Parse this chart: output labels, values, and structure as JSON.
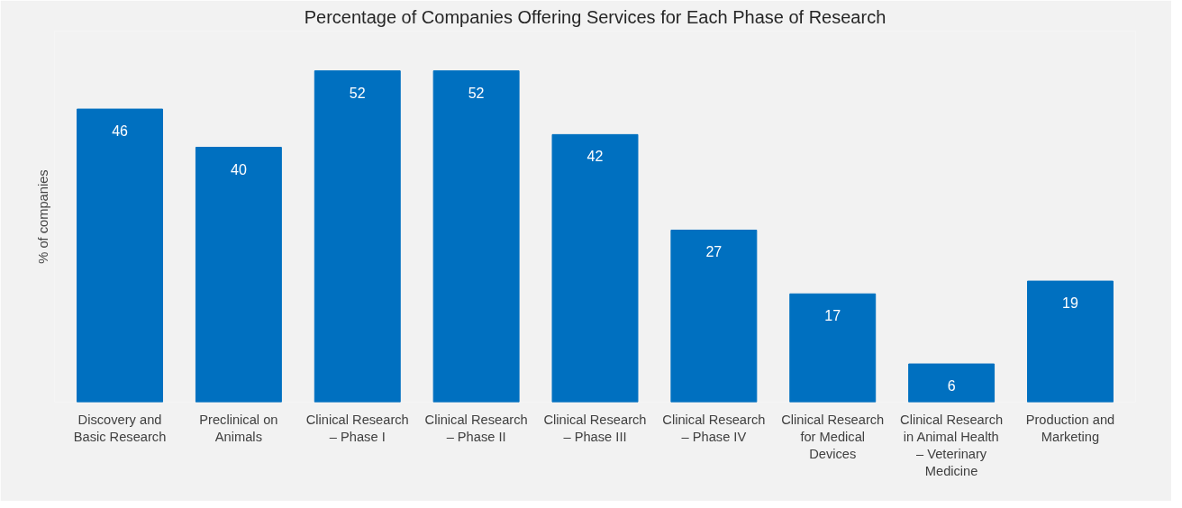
{
  "chart_data": {
    "type": "bar",
    "title": "Percentage of Companies Offering Services for Each Phase of Research",
    "ylabel": "% of companies",
    "categories": [
      "Discovery and Basic Research",
      "Preclinical on Animals",
      "Clinical Research – Phase I",
      "Clinical Research – Phase II",
      "Clinical Research – Phase III",
      "Clinical Research – Phase IV",
      "Clinical Research for Medical Devices",
      "Clinical Research in Animal Health – Veterinary Medicine",
      "Production and Marketing"
    ],
    "values": [
      46,
      40,
      52,
      52,
      42,
      27,
      17,
      6,
      19
    ],
    "color": "#0070c0",
    "data_labels": true,
    "grid": false
  }
}
